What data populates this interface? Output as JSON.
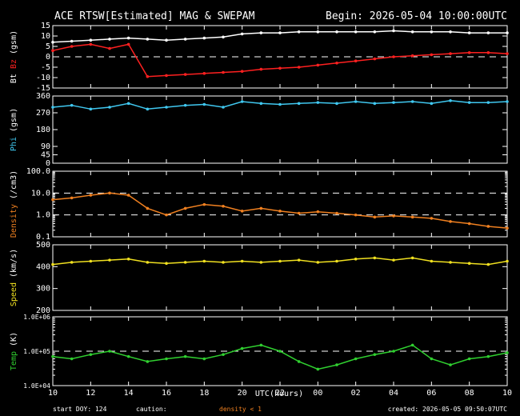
{
  "header": {
    "title": "ACE RTSW[Estimated] MAG & SWEPAM",
    "begin": "Begin: 2026-05-04 10:00:00UTC"
  },
  "footer": {
    "start_doy": "start DOY: 124",
    "caution": "caution:",
    "density_note": "density < 1",
    "created": "created: 2026-05-05 09:50:07UTC"
  },
  "colors": {
    "bt": "#ffffff",
    "bz": "#ff2020",
    "phi": "#40c8f0",
    "density": "#f08020",
    "speed": "#f0e020",
    "temp": "#30d030"
  },
  "chart_data": [
    {
      "type": "line",
      "name": "mag-bt-bz",
      "ylabel_parts": [
        "Bt",
        "Bz",
        "(gsm)"
      ],
      "ylim": [
        -15,
        15
      ],
      "yticks": [
        -15,
        -10,
        -5,
        0,
        5,
        10,
        15
      ],
      "x_hours_range": [
        0,
        24
      ],
      "dashed_y": [
        0
      ],
      "series": [
        {
          "name": "Bt",
          "color": "#ffffff",
          "x": [
            0,
            1,
            2,
            3,
            4,
            5,
            6,
            7,
            8,
            9,
            10,
            11,
            12,
            13,
            14,
            15,
            16,
            17,
            18,
            19,
            20,
            21,
            22,
            23,
            24
          ],
          "values": [
            7,
            7.5,
            8,
            8.5,
            9,
            8.5,
            8,
            8.5,
            9,
            9.5,
            11,
            11.5,
            11.5,
            12,
            12,
            12,
            12,
            12,
            12.5,
            12,
            12,
            12,
            11.5,
            11.5,
            11.5
          ]
        },
        {
          "name": "Bz",
          "color": "#ff2020",
          "x": [
            0,
            1,
            2,
            3,
            4,
            5,
            6,
            7,
            8,
            9,
            10,
            11,
            12,
            13,
            14,
            15,
            16,
            17,
            18,
            19,
            20,
            21,
            22,
            23,
            24
          ],
          "values": [
            3,
            5,
            6,
            4,
            6,
            -9.5,
            -9,
            -8.5,
            -8,
            -7.5,
            -7,
            -6,
            -5.5,
            -5,
            -4,
            -3,
            -2,
            -1,
            0,
            0.5,
            1,
            1.5,
            2,
            2,
            1.5
          ]
        }
      ]
    },
    {
      "type": "scatter",
      "name": "mag-phi",
      "ylabel": "Phi (gsm)",
      "ylim": [
        0,
        360
      ],
      "yticks": [
        0,
        45,
        90,
        180,
        270,
        360
      ],
      "x_hours_range": [
        0,
        24
      ],
      "series": [
        {
          "name": "Phi",
          "color": "#40c8f0",
          "x": [
            0,
            1,
            2,
            3,
            4,
            5,
            6,
            7,
            8,
            9,
            10,
            11,
            12,
            13,
            14,
            15,
            16,
            17,
            18,
            19,
            20,
            21,
            22,
            23,
            24
          ],
          "values": [
            300,
            310,
            290,
            300,
            320,
            290,
            300,
            310,
            315,
            300,
            330,
            320,
            315,
            320,
            325,
            320,
            330,
            320,
            325,
            330,
            320,
            335,
            325,
            325,
            330
          ]
        }
      ]
    },
    {
      "type": "scatter",
      "name": "plasma-density",
      "ylabel": "Density (/cm3)",
      "yscale": "log",
      "ylim": [
        0.1,
        100
      ],
      "ytick_labels": [
        "0.1",
        "1.0",
        "10.0",
        "100.0"
      ],
      "x_hours_range": [
        0,
        24
      ],
      "dashed_y": [
        1,
        10
      ],
      "series": [
        {
          "name": "Density",
          "color": "#f08020",
          "x": [
            0,
            1,
            2,
            3,
            4,
            5,
            6,
            7,
            8,
            9,
            10,
            11,
            12,
            13,
            14,
            15,
            16,
            17,
            18,
            19,
            20,
            21,
            22,
            23,
            24
          ],
          "values": [
            5,
            6,
            8,
            10,
            8,
            2,
            1,
            2,
            3,
            2.5,
            1.5,
            2,
            1.5,
            1.2,
            1.4,
            1.2,
            1.0,
            0.8,
            0.9,
            0.8,
            0.7,
            0.5,
            0.4,
            0.3,
            0.25
          ]
        }
      ]
    },
    {
      "type": "scatter",
      "name": "plasma-speed",
      "ylabel": "Speed (km/s)",
      "ylim": [
        200,
        500
      ],
      "yticks": [
        200,
        300,
        400,
        500
      ],
      "x_hours_range": [
        0,
        24
      ],
      "series": [
        {
          "name": "Speed",
          "color": "#f0e020",
          "x": [
            0,
            1,
            2,
            3,
            4,
            5,
            6,
            7,
            8,
            9,
            10,
            11,
            12,
            13,
            14,
            15,
            16,
            17,
            18,
            19,
            20,
            21,
            22,
            23,
            24
          ],
          "values": [
            410,
            420,
            425,
            430,
            435,
            420,
            415,
            420,
            425,
            420,
            425,
            420,
            425,
            430,
            420,
            425,
            435,
            440,
            430,
            440,
            425,
            420,
            415,
            410,
            425
          ]
        }
      ]
    },
    {
      "type": "scatter",
      "name": "plasma-temp",
      "ylabel": "Temp (K)",
      "yscale": "log",
      "ylim": [
        10000,
        1000000
      ],
      "ytick_labels": [
        "1.0E+04",
        "1.0E+05",
        "1.0E+06"
      ],
      "x_hours_range": [
        0,
        24
      ],
      "dashed_y": [
        100000
      ],
      "series": [
        {
          "name": "Temp",
          "color": "#30d030",
          "x": [
            0,
            1,
            2,
            3,
            4,
            5,
            6,
            7,
            8,
            9,
            10,
            11,
            12,
            13,
            14,
            15,
            16,
            17,
            18,
            19,
            20,
            21,
            22,
            23,
            24
          ],
          "values": [
            70000,
            60000,
            80000,
            100000,
            70000,
            50000,
            60000,
            70000,
            60000,
            80000,
            120000,
            150000,
            100000,
            50000,
            30000,
            40000,
            60000,
            80000,
            100000,
            150000,
            60000,
            40000,
            60000,
            70000,
            90000
          ]
        }
      ]
    }
  ],
  "xaxis": {
    "label": "UTC(hours)",
    "tick_labels": [
      "10",
      "12",
      "14",
      "16",
      "18",
      "20",
      "22",
      "00",
      "02",
      "04",
      "06",
      "08",
      "10"
    ],
    "tick_hours": [
      0,
      2,
      4,
      6,
      8,
      10,
      12,
      14,
      16,
      18,
      20,
      22,
      24
    ]
  }
}
